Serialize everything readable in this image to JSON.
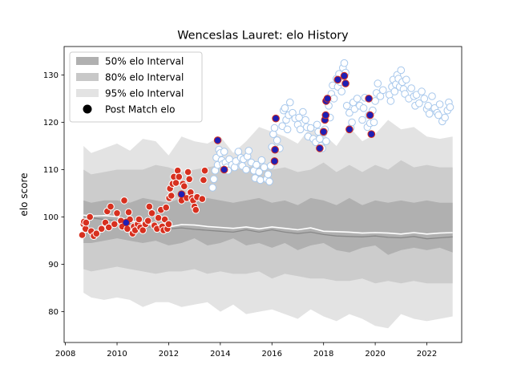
{
  "chart_data": {
    "type": "scatter",
    "title": "Wenceslas Lauret: elo History",
    "xlabel": "",
    "ylabel": "elo score",
    "xlim": [
      2007.95,
      2023.35
    ],
    "ylim": [
      73.5,
      136.0
    ],
    "xticks": [
      2008,
      2010,
      2012,
      2014,
      2016,
      2018,
      2020,
      2022
    ],
    "yticks": [
      80,
      90,
      100,
      110,
      120,
      130
    ],
    "grid": false,
    "legend_position": "top-left",
    "legend": [
      {
        "label": "50% elo Interval",
        "kind": "band",
        "color": "#b0b0b0"
      },
      {
        "label": "80% elo Interval",
        "kind": "band",
        "color": "#c8c8c8"
      },
      {
        "label": "95% elo Interval",
        "kind": "band",
        "color": "#e3e3e3"
      },
      {
        "label": "Post Match elo",
        "kind": "marker",
        "color": "#000000"
      }
    ],
    "colors": {
      "band50": "#b0b0b0",
      "band80": "#cccccc",
      "band95": "#e3e3e3",
      "median_line": "#888888",
      "mean_line": "#ffffff",
      "win_marker": "#d7301f",
      "loss_marker": "#ffffff",
      "loss_edge": "#a8c8ec",
      "blue_marker": "#1f1fb4",
      "marker_edge": "#ffffff"
    },
    "bands": {
      "x": [
        2008.7,
        2009.0,
        2009.5,
        2010.0,
        2010.5,
        2011.0,
        2011.5,
        2012.0,
        2012.5,
        2013.0,
        2013.5,
        2014.0,
        2014.5,
        2015.0,
        2015.5,
        2016.0,
        2016.5,
        2017.0,
        2017.5,
        2018.0,
        2018.5,
        2019.0,
        2019.5,
        2020.0,
        2020.5,
        2021.0,
        2021.5,
        2022.0,
        2022.5,
        2023.0
      ],
      "p95_hi": [
        115.0,
        113.5,
        114.5,
        115.5,
        114.0,
        116.5,
        116.0,
        113.0,
        117.0,
        116.0,
        115.5,
        117.0,
        113.5,
        116.0,
        119.0,
        118.0,
        117.0,
        115.5,
        119.0,
        117.5,
        115.0,
        119.0,
        116.0,
        117.5,
        120.5,
        118.5,
        119.0,
        117.0,
        116.5,
        117.0
      ],
      "p80_hi": [
        110.0,
        109.0,
        109.5,
        110.0,
        110.0,
        110.0,
        111.0,
        110.5,
        109.5,
        110.0,
        110.5,
        111.0,
        110.0,
        110.5,
        111.0,
        110.0,
        110.5,
        109.5,
        110.0,
        111.5,
        109.5,
        111.0,
        109.5,
        111.0,
        110.0,
        112.0,
        110.5,
        111.0,
        110.5,
        110.5
      ],
      "p50_hi": [
        103.5,
        103.0,
        103.5,
        103.5,
        103.0,
        104.0,
        103.5,
        103.0,
        104.0,
        103.0,
        104.0,
        103.5,
        103.0,
        103.5,
        104.0,
        103.0,
        103.5,
        102.5,
        104.0,
        103.5,
        102.5,
        104.0,
        102.5,
        103.5,
        103.0,
        103.5,
        103.0,
        103.5,
        103.0,
        103.0
      ],
      "p50_lo": [
        94.5,
        94.5,
        95.0,
        95.5,
        95.0,
        94.5,
        95.0,
        94.0,
        94.5,
        95.5,
        94.0,
        94.5,
        95.5,
        94.0,
        94.5,
        93.5,
        94.5,
        93.0,
        94.0,
        94.5,
        93.0,
        92.5,
        93.5,
        94.0,
        92.0,
        93.0,
        93.5,
        93.0,
        93.5,
        92.5
      ],
      "p80_lo": [
        89.0,
        88.5,
        89.0,
        89.5,
        89.0,
        88.5,
        88.0,
        88.5,
        88.5,
        89.0,
        88.0,
        88.5,
        88.0,
        88.0,
        88.5,
        87.0,
        88.0,
        87.5,
        87.0,
        87.0,
        86.5,
        86.5,
        87.0,
        86.0,
        86.5,
        86.0,
        86.5,
        86.0,
        86.0,
        86.0
      ],
      "p95_lo": [
        84.0,
        83.0,
        82.5,
        83.0,
        82.5,
        81.0,
        82.0,
        82.0,
        81.0,
        81.5,
        82.0,
        80.0,
        81.5,
        79.5,
        80.0,
        80.5,
        79.5,
        78.5,
        80.5,
        79.0,
        78.0,
        79.5,
        78.5,
        77.0,
        76.5,
        79.5,
        78.5,
        78.0,
        78.5,
        79.0
      ],
      "median": [
        100.0,
        99.8,
        99.5,
        99.2,
        98.6,
        98.0,
        97.8,
        97.5,
        97.7,
        97.4,
        97.2,
        97.0,
        96.8,
        97.3,
        96.8,
        97.3,
        96.8,
        96.5,
        96.8,
        96.3,
        96.0,
        95.9,
        95.8,
        96.0,
        95.7,
        95.6,
        95.9,
        95.4,
        95.6,
        95.8
      ],
      "mean": [
        100.4,
        100.2,
        100.3,
        100.1,
        99.2,
        98.7,
        98.3,
        97.9,
        98.4,
        98.3,
        98.0,
        97.8,
        97.6,
        97.9,
        97.5,
        97.9,
        97.6,
        97.3,
        97.7,
        97.0,
        96.9,
        96.8,
        96.6,
        96.7,
        96.6,
        96.4,
        96.7,
        96.4,
        96.6,
        96.7
      ]
    },
    "series": [
      {
        "kind": "win",
        "x": [
          2008.65,
          2008.7,
          2008.72,
          2008.78,
          2008.8,
          2008.95,
          2009.0,
          2009.1,
          2009.2,
          2009.4,
          2009.55,
          2009.62,
          2009.68,
          2009.75,
          2009.9,
          2010.0,
          2010.15,
          2010.2,
          2010.28,
          2010.4,
          2010.45,
          2010.5,
          2010.6,
          2010.65,
          2010.7,
          2010.8,
          2010.85,
          2010.9,
          2011.0,
          2011.1,
          2011.2,
          2011.25,
          2011.35,
          2011.45,
          2011.55,
          2011.6,
          2011.7,
          2011.75,
          2011.8,
          2011.85,
          2011.9,
          2011.95,
          2012.0,
          2012.02,
          2012.05,
          2012.1,
          2012.15,
          2012.2,
          2012.28,
          2012.35,
          2012.4,
          2012.5,
          2012.55,
          2012.6,
          2012.7,
          2012.75,
          2012.8,
          2012.85,
          2012.9,
          2012.95,
          2013.0,
          2013.05,
          2013.1,
          2013.3,
          2013.35,
          2013.4
        ],
        "y": [
          96.2,
          98.5,
          99.0,
          97.5,
          98.8,
          100.0,
          97.0,
          96.0,
          96.5,
          97.5,
          98.8,
          101.2,
          97.8,
          102.2,
          98.5,
          100.8,
          99.2,
          98.0,
          103.5,
          97.5,
          101.0,
          99.5,
          96.5,
          98.0,
          97.2,
          98.5,
          99.5,
          97.8,
          97.2,
          98.5,
          99.2,
          102.2,
          100.8,
          98.2,
          97.5,
          99.8,
          101.5,
          98.0,
          97.2,
          99.5,
          102.0,
          97.5,
          98.5,
          104.0,
          106.0,
          104.5,
          107.0,
          108.5,
          107.2,
          109.8,
          108.5,
          103.5,
          107.0,
          106.5,
          104.0,
          109.5,
          108.0,
          105.2,
          104.0,
          103.5,
          102.2,
          101.5,
          104.2,
          103.8,
          107.8,
          109.8
        ]
      },
      {
        "kind": "loss",
        "x": [
          2013.7,
          2013.75,
          2013.8,
          2013.85,
          2013.9,
          2013.95,
          2014.0,
          2014.05,
          2014.1,
          2014.15,
          2014.2,
          2014.25,
          2014.3,
          2014.35,
          2014.45,
          2014.55,
          2014.6,
          2014.7,
          2014.8,
          2014.85,
          2014.9,
          2015.0,
          2015.05,
          2015.1,
          2015.2,
          2015.3,
          2015.35,
          2015.4,
          2015.5,
          2015.55,
          2015.6,
          2015.7,
          2015.8,
          2015.85,
          2015.9,
          2015.95,
          2016.0,
          2016.05,
          2016.1,
          2016.2,
          2016.3,
          2016.4,
          2016.45,
          2016.5,
          2016.55,
          2016.6,
          2016.65,
          2016.7,
          2016.8,
          2016.9,
          2017.0,
          2017.05,
          2017.1,
          2017.2,
          2017.3,
          2017.35,
          2017.4,
          2017.5,
          2017.6,
          2017.7,
          2017.75,
          2017.8,
          2017.85,
          2017.9,
          2017.95,
          2018.0,
          2018.05,
          2018.1,
          2018.2,
          2018.25,
          2018.3,
          2018.35,
          2018.4,
          2018.5,
          2018.55,
          2018.6,
          2018.65,
          2018.7,
          2018.75,
          2018.8,
          2018.85,
          2018.9,
          2019.0,
          2019.05,
          2019.1,
          2019.15,
          2019.2,
          2019.3,
          2019.4,
          2019.5,
          2019.55,
          2019.6,
          2019.7,
          2019.75,
          2019.8,
          2019.9,
          2019.95,
          2020.0,
          2020.05,
          2020.1,
          2020.2,
          2020.3,
          2020.55,
          2020.6,
          2020.65,
          2020.7,
          2020.75,
          2020.8,
          2020.85,
          2020.9,
          2020.95,
          2021.0,
          2021.05,
          2021.1,
          2021.15,
          2021.2,
          2021.3,
          2021.4,
          2021.5,
          2021.55,
          2021.6,
          2021.7,
          2021.8,
          2021.9,
          2022.0,
          2022.05,
          2022.1,
          2022.2,
          2022.3,
          2022.4,
          2022.45,
          2022.5,
          2022.6,
          2022.7,
          2022.8,
          2022.85,
          2022.9
        ],
        "y": [
          106.2,
          108.0,
          109.8,
          112.5,
          111.0,
          114.2,
          113.5,
          112.0,
          111.2,
          113.8,
          111.5,
          110.5,
          109.8,
          112.2,
          111.0,
          110.5,
          111.8,
          113.8,
          112.5,
          110.8,
          112.2,
          110.0,
          112.8,
          114.0,
          111.5,
          109.8,
          108.2,
          111.0,
          109.5,
          107.8,
          112.0,
          110.5,
          108.0,
          109.0,
          107.5,
          110.8,
          114.8,
          117.5,
          118.8,
          116.2,
          114.5,
          119.2,
          122.5,
          123.0,
          120.5,
          118.5,
          121.5,
          124.2,
          122.0,
          120.8,
          119.5,
          121.0,
          118.5,
          122.2,
          120.5,
          119.0,
          117.0,
          118.8,
          116.5,
          115.8,
          119.5,
          118.0,
          116.5,
          115.0,
          114.5,
          117.8,
          118.5,
          116.0,
          123.5,
          121.0,
          126.0,
          127.8,
          125.0,
          129.2,
          127.5,
          130.2,
          128.5,
          126.5,
          131.5,
          132.5,
          130.5,
          123.5,
          122.0,
          118.8,
          120.0,
          124.2,
          122.8,
          125.0,
          123.5,
          120.5,
          123.0,
          125.2,
          119.0,
          121.5,
          119.8,
          122.5,
          120.0,
          124.5,
          126.2,
          128.2,
          125.5,
          126.8,
          125.8,
          124.5,
          127.5,
          129.0,
          126.5,
          128.0,
          130.0,
          129.2,
          127.5,
          131.0,
          128.5,
          127.0,
          126.0,
          129.0,
          125.0,
          127.2,
          125.5,
          123.5,
          125.8,
          124.0,
          126.5,
          125.0,
          122.8,
          123.5,
          121.8,
          125.5,
          123.0,
          122.0,
          121.5,
          123.8,
          120.2,
          121.0,
          122.5,
          124.2,
          123.2
        ]
      },
      {
        "kind": "blue",
        "x": [
          2010.35,
          2012.5,
          2013.9,
          2014.15,
          2016.1,
          2016.12,
          2016.15,
          2017.85,
          2018.0,
          2018.05,
          2018.08,
          2018.1,
          2018.15,
          2018.55,
          2018.8,
          2018.85,
          2019.0,
          2019.75,
          2019.8,
          2019.85
        ],
        "y": [
          98.8,
          104.8,
          116.2,
          110.0,
          111.8,
          114.2,
          120.8,
          114.5,
          118.0,
          120.5,
          121.5,
          124.5,
          125.0,
          129.0,
          129.8,
          128.2,
          118.5,
          125.0,
          121.5,
          117.5
        ]
      }
    ]
  }
}
